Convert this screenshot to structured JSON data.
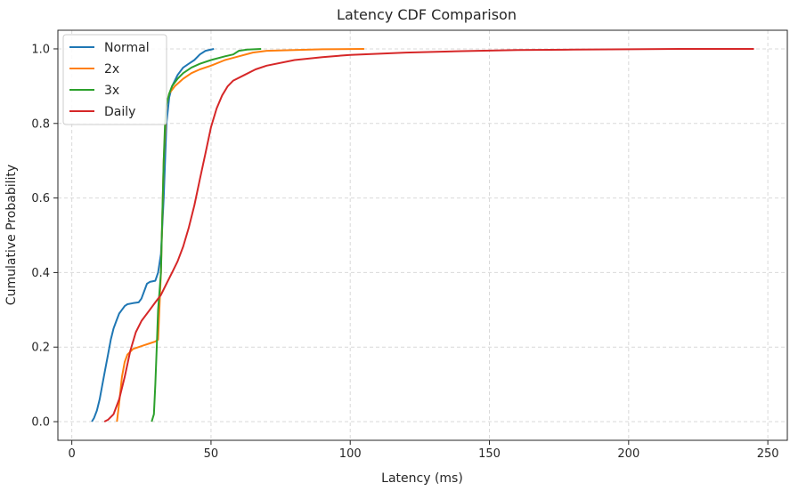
{
  "chart_data": {
    "type": "line",
    "title": "Latency CDF Comparison",
    "xlabel": "Latency (ms)",
    "ylabel": "Cumulative Probability",
    "xlim": [
      -5,
      257
    ],
    "ylim": [
      -0.05,
      1.05
    ],
    "xticks": [
      0,
      50,
      100,
      150,
      200,
      250
    ],
    "yticks": [
      0.0,
      0.2,
      0.4,
      0.6,
      0.8,
      1.0
    ],
    "xtick_labels": [
      "0",
      "50",
      "100",
      "150",
      "200",
      "250"
    ],
    "ytick_labels": [
      "0.0",
      "0.2",
      "0.4",
      "0.6",
      "0.8",
      "1.0"
    ],
    "grid": true,
    "legend_position": "top-left",
    "series": [
      {
        "name": "Normal",
        "color": "#1f77b4",
        "points": [
          [
            7.2,
            0.0
          ],
          [
            8,
            0.01
          ],
          [
            9,
            0.03
          ],
          [
            10,
            0.06
          ],
          [
            11,
            0.1
          ],
          [
            12,
            0.14
          ],
          [
            13,
            0.18
          ],
          [
            14,
            0.22
          ],
          [
            15,
            0.25
          ],
          [
            16,
            0.27
          ],
          [
            17,
            0.29
          ],
          [
            18,
            0.3
          ],
          [
            19,
            0.31
          ],
          [
            20,
            0.315
          ],
          [
            22,
            0.318
          ],
          [
            24,
            0.32
          ],
          [
            25,
            0.33
          ],
          [
            26,
            0.35
          ],
          [
            27,
            0.37
          ],
          [
            28,
            0.375
          ],
          [
            30,
            0.378
          ],
          [
            31,
            0.4
          ],
          [
            32,
            0.45
          ],
          [
            33,
            0.6
          ],
          [
            34,
            0.8
          ],
          [
            35,
            0.87
          ],
          [
            36,
            0.9
          ],
          [
            38,
            0.93
          ],
          [
            40,
            0.95
          ],
          [
            42,
            0.96
          ],
          [
            44,
            0.97
          ],
          [
            46,
            0.985
          ],
          [
            48,
            0.995
          ],
          [
            51,
            1.0
          ]
        ]
      },
      {
        "name": "2x",
        "color": "#ff7f0e",
        "points": [
          [
            16.2,
            0.0
          ],
          [
            17,
            0.05
          ],
          [
            18,
            0.12
          ],
          [
            19,
            0.16
          ],
          [
            20,
            0.18
          ],
          [
            22,
            0.195
          ],
          [
            24,
            0.2
          ],
          [
            26,
            0.205
          ],
          [
            28,
            0.21
          ],
          [
            30,
            0.215
          ],
          [
            31,
            0.22
          ],
          [
            32,
            0.4
          ],
          [
            33,
            0.7
          ],
          [
            34,
            0.85
          ],
          [
            35,
            0.88
          ],
          [
            37,
            0.9
          ],
          [
            40,
            0.92
          ],
          [
            43,
            0.935
          ],
          [
            46,
            0.945
          ],
          [
            50,
            0.955
          ],
          [
            55,
            0.97
          ],
          [
            60,
            0.98
          ],
          [
            65,
            0.99
          ],
          [
            70,
            0.995
          ],
          [
            80,
            0.997
          ],
          [
            90,
            0.999
          ],
          [
            105,
            1.0
          ]
        ]
      },
      {
        "name": "3x",
        "color": "#2ca02c",
        "points": [
          [
            28.7,
            0.0
          ],
          [
            29.5,
            0.02
          ],
          [
            30,
            0.1
          ],
          [
            30.5,
            0.2
          ],
          [
            31,
            0.3
          ],
          [
            31.5,
            0.35
          ],
          [
            32,
            0.4
          ],
          [
            32.5,
            0.55
          ],
          [
            33,
            0.7
          ],
          [
            33.5,
            0.8
          ],
          [
            34,
            0.85
          ],
          [
            35,
            0.88
          ],
          [
            36,
            0.9
          ],
          [
            38,
            0.92
          ],
          [
            40,
            0.935
          ],
          [
            43,
            0.95
          ],
          [
            46,
            0.96
          ],
          [
            50,
            0.97
          ],
          [
            55,
            0.98
          ],
          [
            58,
            0.985
          ],
          [
            60,
            0.995
          ],
          [
            63,
            0.998
          ],
          [
            68,
            1.0
          ]
        ]
      },
      {
        "name": "Daily",
        "color": "#d62728",
        "points": [
          [
            11.7,
            0.0
          ],
          [
            13,
            0.005
          ],
          [
            15,
            0.02
          ],
          [
            17,
            0.06
          ],
          [
            19,
            0.12
          ],
          [
            21,
            0.19
          ],
          [
            23,
            0.24
          ],
          [
            25,
            0.27
          ],
          [
            28,
            0.3
          ],
          [
            30,
            0.32
          ],
          [
            32,
            0.34
          ],
          [
            34,
            0.37
          ],
          [
            36,
            0.4
          ],
          [
            38,
            0.43
          ],
          [
            40,
            0.47
          ],
          [
            42,
            0.52
          ],
          [
            44,
            0.58
          ],
          [
            46,
            0.65
          ],
          [
            48,
            0.72
          ],
          [
            50,
            0.79
          ],
          [
            52,
            0.84
          ],
          [
            54,
            0.875
          ],
          [
            56,
            0.9
          ],
          [
            58,
            0.915
          ],
          [
            62,
            0.93
          ],
          [
            66,
            0.945
          ],
          [
            70,
            0.955
          ],
          [
            80,
            0.97
          ],
          [
            90,
            0.978
          ],
          [
            100,
            0.984
          ],
          [
            120,
            0.99
          ],
          [
            140,
            0.994
          ],
          [
            160,
            0.997
          ],
          [
            180,
            0.998
          ],
          [
            200,
            0.999
          ],
          [
            220,
            1.0
          ],
          [
            245,
            1.0
          ]
        ]
      }
    ]
  }
}
